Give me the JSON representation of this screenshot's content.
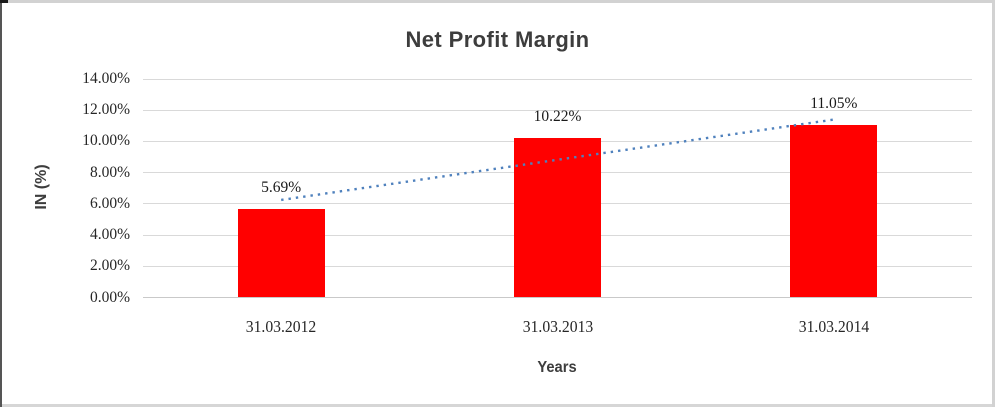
{
  "chart_data": {
    "type": "bar",
    "title": "Net Profit Margin",
    "xlabel": "Years",
    "ylabel": "IN (%)",
    "categories": [
      "31.03.2012",
      "31.03.2013",
      "31.03.2014"
    ],
    "values": [
      5.69,
      10.22,
      11.05
    ],
    "data_labels": [
      "5.69%",
      "10.22%",
      "11.05%"
    ],
    "y_ticks": [
      "0.00%",
      "2.00%",
      "4.00%",
      "6.00%",
      "8.00%",
      "10.00%",
      "12.00%",
      "14.00%"
    ],
    "ylim": [
      0,
      14
    ],
    "y_tick_step": 2,
    "grid": true,
    "legend": "none",
    "bar_color": "#ff0000",
    "trendline": {
      "style": "dotted",
      "color": "#4f81bd",
      "start_value": 6.25,
      "end_value": 11.4
    },
    "colors": {
      "gridline": "#d9d9d9",
      "axis_line": "#c9c9c9",
      "title_text": "#3d3d3d",
      "tick_text": "#262626"
    }
  }
}
